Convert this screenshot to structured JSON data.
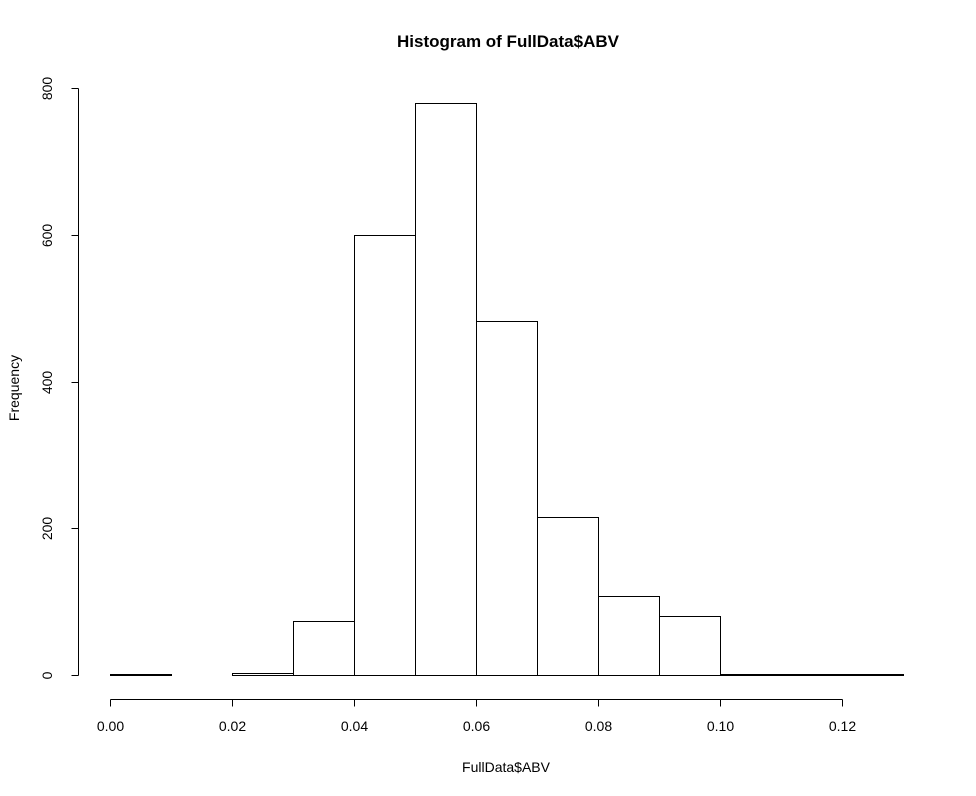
{
  "chart_data": {
    "type": "bar",
    "title": "Histogram of FullData$ABV",
    "xlabel": "FullData$ABV",
    "ylabel": "Frequency",
    "bins": [
      {
        "from": 0.0,
        "to": 0.01,
        "count": 1
      },
      {
        "from": 0.01,
        "to": 0.02,
        "count": 0
      },
      {
        "from": 0.02,
        "to": 0.03,
        "count": 3
      },
      {
        "from": 0.03,
        "to": 0.04,
        "count": 73
      },
      {
        "from": 0.04,
        "to": 0.05,
        "count": 600
      },
      {
        "from": 0.05,
        "to": 0.06,
        "count": 780
      },
      {
        "from": 0.06,
        "to": 0.07,
        "count": 483
      },
      {
        "from": 0.07,
        "to": 0.08,
        "count": 216
      },
      {
        "from": 0.08,
        "to": 0.09,
        "count": 108
      },
      {
        "from": 0.09,
        "to": 0.1,
        "count": 80
      },
      {
        "from": 0.1,
        "to": 0.11,
        "count": 1
      },
      {
        "from": 0.11,
        "to": 0.12,
        "count": 1
      },
      {
        "from": 0.12,
        "to": 0.13,
        "count": 2
      }
    ],
    "xlim": [
      0,
      0.13
    ],
    "ylim": [
      0,
      800
    ],
    "x_ticks": [
      0.0,
      0.02,
      0.04,
      0.06,
      0.08,
      0.1,
      0.12
    ],
    "x_tick_labels": [
      "0.00",
      "0.02",
      "0.04",
      "0.06",
      "0.08",
      "0.10",
      "0.12"
    ],
    "y_ticks": [
      0,
      200,
      400,
      600,
      800
    ],
    "y_tick_labels": [
      "0",
      "200",
      "400",
      "600",
      "800"
    ],
    "grid": false,
    "bar_fill": "#ffffff",
    "bar_stroke": "#000000"
  }
}
